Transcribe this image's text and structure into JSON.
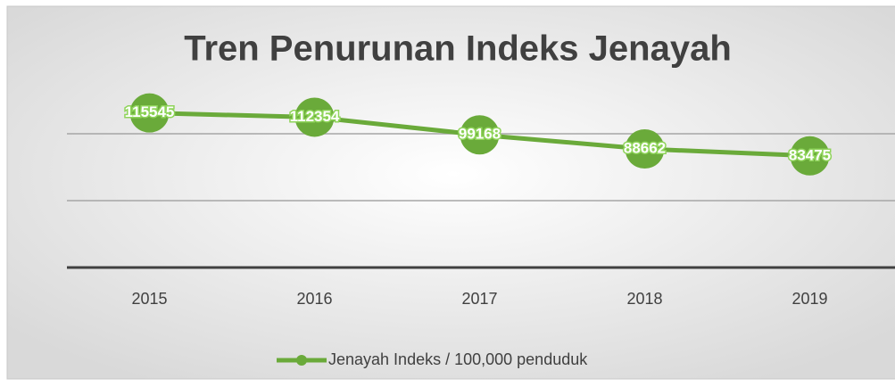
{
  "chart_data": {
    "type": "line",
    "title": "Tren Penurunan Indeks Jenayah",
    "categories": [
      "2015",
      "2016",
      "2017",
      "2018",
      "2019"
    ],
    "series": [
      {
        "name": "Jenayah Indeks / 100,000 penduduk",
        "color": "#6aaa3a",
        "values": [
          115545,
          112354,
          99168,
          88662,
          83475
        ]
      }
    ],
    "ylim": [
      0,
      140000
    ],
    "yticks": [
      0,
      50000,
      100000
    ],
    "grid": true,
    "legend": "bottom"
  }
}
